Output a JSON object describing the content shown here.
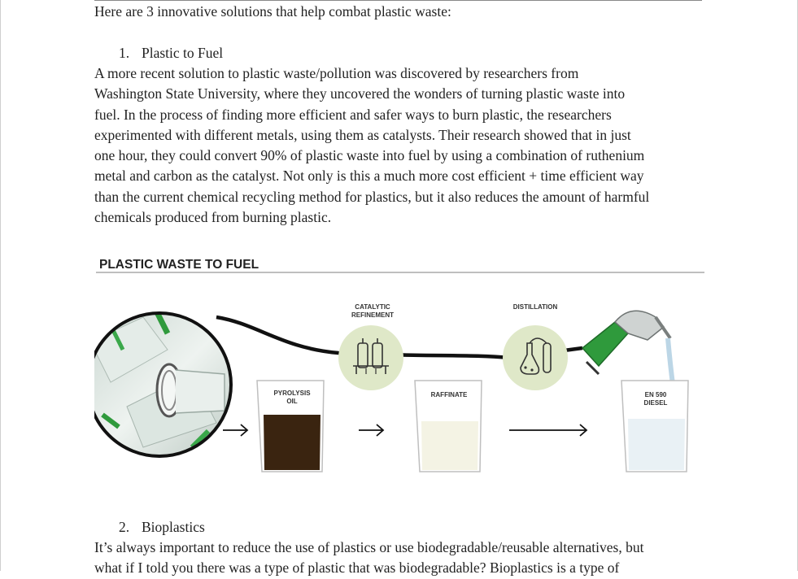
{
  "document": {
    "intro": "Here are 3 innovative solutions that help combat plastic waste:",
    "sections": [
      {
        "number": "1.",
        "title": "Plastic to Fuel",
        "lines": [
          "A more recent solution to plastic waste/pollution was discovered by researchers from",
          "Washington State University, where they uncovered the wonders of turning plastic waste into",
          "fuel. In the process of finding more efficient and safer ways to burn plastic, the researchers",
          "experimented with different metals, using them as catalysts. Their research showed that in just",
          "one hour, they could convert 90% of plastic waste into fuel by using a combination of ruthenium",
          "metal and carbon as the catalyst. Not only is this a much more cost efficient + time efficient way",
          "than the current chemical recycling method for plastics, but it also reduces the amount of harmful",
          "chemicals produced from burning plastic."
        ]
      },
      {
        "number": "2.",
        "title": "Bioplastics",
        "lines": [
          "It’s always important to reduce the use of plastics or use biodegradable/reusable alternatives, but",
          "what if I told you there was a type of plastic that was biodegradable?  Bioplastics is a type of"
        ]
      }
    ]
  },
  "infographic": {
    "title": "PLASTIC WASTE TO FUEL",
    "step1_label_line1": "CATALYTIC",
    "step1_label_line2": "REFINEMENT",
    "step2_label": "DISTILLATION",
    "beaker1_line1": "PYROLYSIS",
    "beaker1_line2": "OIL",
    "beaker2": "RAFFINATE",
    "beaker3_line1": "EN 590",
    "beaker3_line2": "DIESEL",
    "colors": {
      "circle_fill": "#dfe8c8",
      "oil": "#3a2410",
      "raffinate": "#f4f3e4",
      "diesel": "#e9f1f5",
      "nozzle": "#2f9a3c",
      "line": "#111111"
    }
  }
}
